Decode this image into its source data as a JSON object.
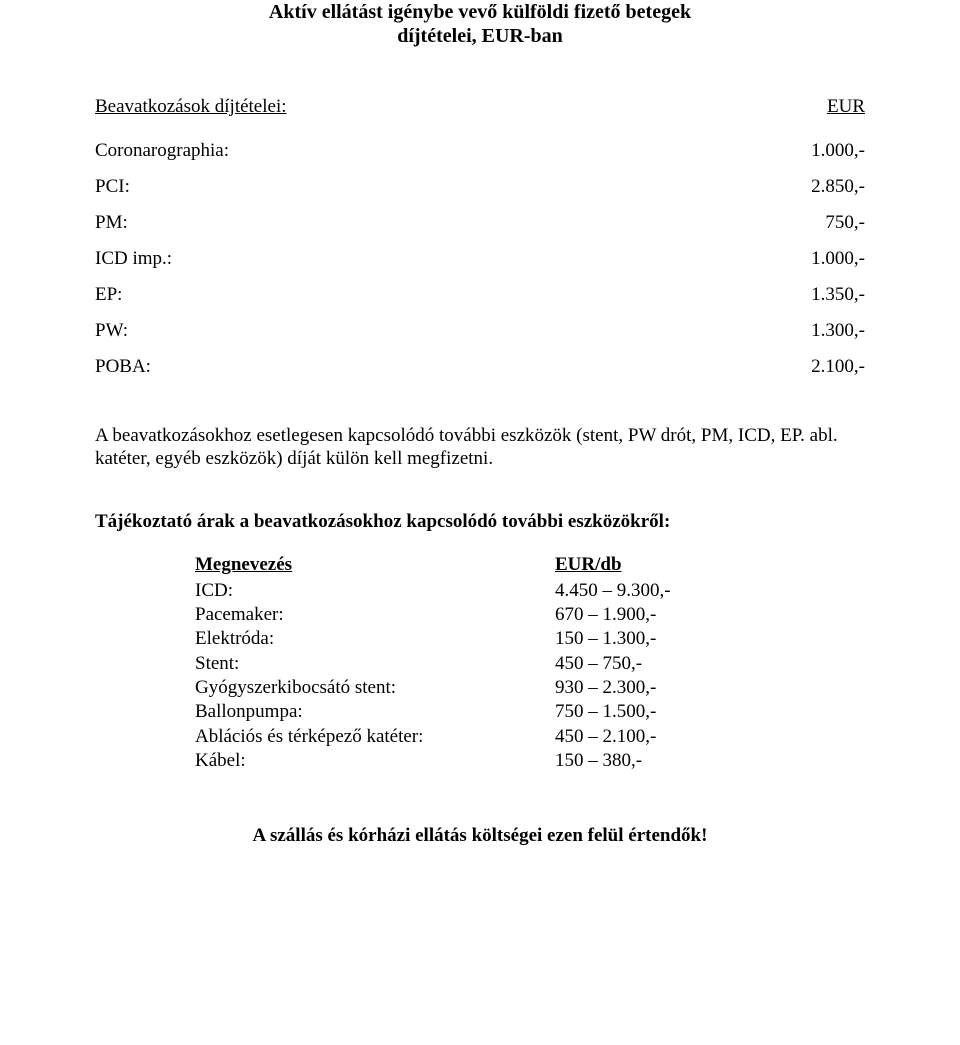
{
  "title": {
    "line1": "Aktív ellátást igénybe vevő külföldi fizető betegek",
    "line2": "díjtételei, EUR-ban"
  },
  "fees": {
    "heading_label": "Beavatkozások díjtételei:",
    "heading_currency": "EUR  ",
    "rows": [
      {
        "name": "Coronarographia:",
        "value": "1.000,-"
      },
      {
        "name": "PCI:",
        "value": "2.850,-"
      },
      {
        "name": "PM:",
        "value": "750,-"
      },
      {
        "name": "ICD imp.:",
        "value": "1.000,-"
      },
      {
        "name": "EP:",
        "value": "1.350,-"
      },
      {
        "name": "PW:",
        "value": "1.300,-"
      },
      {
        "name": "POBA:",
        "value": "2.100,-"
      }
    ]
  },
  "note": "A beavatkozásokhoz esetlegesen kapcsolódó további eszközök (stent, PW drót, PM, ICD, EP. abl. katéter, egyéb eszközök) díját külön kell megfizetni.",
  "equipment": {
    "heading": "Tájékoztató árak a beavatkozásokhoz kapcsolódó további eszközökről:",
    "col_name": "Megnevezés",
    "col_price": "EUR/db",
    "rows": [
      {
        "name": "ICD:",
        "price": "4.450 – 9.300,-"
      },
      {
        "name": "Pacemaker:",
        "price": "670 – 1.900,-"
      },
      {
        "name": "Elektróda:",
        "price": "150 – 1.300,-"
      },
      {
        "name": "Stent:",
        "price": "450 – 750,-"
      },
      {
        "name": "Gyógyszerkibocsátó stent:",
        "price": "930 – 2.300,-"
      },
      {
        "name": "Ballonpumpa:",
        "price": "750 – 1.500,-"
      },
      {
        "name": "Ablációs és térképező katéter:",
        "price": "450 – 2.100,-"
      },
      {
        "name": "Kábel:",
        "price": "150 – 380,-"
      }
    ]
  },
  "footer": "A szállás és kórházi ellátás költségei ezen felül értendők!"
}
